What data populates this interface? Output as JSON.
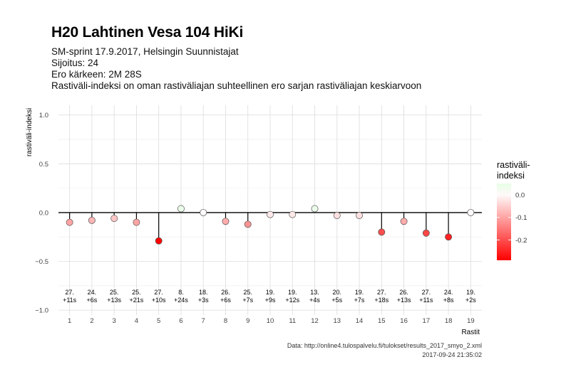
{
  "title": "H20 Lahtinen Vesa 104 HiKi",
  "subtitles": [
    "SM-sprint 17.9.2017, Helsingin Suunnistajat",
    "Sijoitus: 24",
    "Ero kärkeen: 2M 28S",
    "Rastiväli-indeksi on oman rastiväliajan suhteellinen ero sarjan rastiväliajan keskiarvoon"
  ],
  "caption": {
    "source": "Data: http://online4.tulospalvelu.fi/tulokset/results_2017_smyo_2.xml",
    "timestamp": "2017-09-24 21:35:02"
  },
  "legend": {
    "title": "rastiväli-\nindeksi",
    "ticks": [
      "0.0",
      "-0.1",
      "-0.2"
    ],
    "tick_values": [
      0.0,
      -0.1,
      -0.2
    ],
    "range": [
      -0.29,
      0.05
    ],
    "colors": {
      "low": "#ff0000",
      "mid": "#fffafa",
      "high": "#e6ffe6"
    }
  },
  "chart_data": {
    "type": "scatter",
    "style": "lollipop",
    "xlabel": "Rastit",
    "ylabel": "rastiväli-indeksi",
    "ylim": [
      -1.05,
      1.1
    ],
    "yticks": [
      1.0,
      0.5,
      0.0,
      -0.5,
      -1.0
    ],
    "ytick_labels": [
      "1.0",
      "0.5",
      "0.0",
      "−0.5",
      "−1.0"
    ],
    "grid": true,
    "legend_position": "right",
    "categories": [
      "1",
      "2",
      "3",
      "4",
      "5",
      "6",
      "7",
      "8",
      "9",
      "10",
      "11",
      "12",
      "13",
      "14",
      "15",
      "16",
      "17",
      "18",
      "19"
    ],
    "values": [
      -0.1,
      -0.08,
      -0.06,
      -0.1,
      -0.29,
      0.04,
      0.0,
      -0.09,
      -0.12,
      -0.02,
      -0.02,
      0.04,
      -0.03,
      -0.03,
      -0.2,
      -0.09,
      -0.21,
      -0.25,
      0.0
    ],
    "annotations": [
      [
        "27.",
        "+11s"
      ],
      [
        "24.",
        "+6s"
      ],
      [
        "25.",
        "+13s"
      ],
      [
        "25.",
        "+21s"
      ],
      [
        "27.",
        "+10s"
      ],
      [
        "8.",
        "+24s"
      ],
      [
        "18.",
        "+3s"
      ],
      [
        "26.",
        "+6s"
      ],
      [
        "25.",
        "+7s"
      ],
      [
        "19.",
        "+9s"
      ],
      [
        "19.",
        "+12s"
      ],
      [
        "13.",
        "+4s"
      ],
      [
        "20.",
        "+5s"
      ],
      [
        "19.",
        "+7s"
      ],
      [
        "27.",
        "+18s"
      ],
      [
        "26.",
        "+13s"
      ],
      [
        "27.",
        "+11s"
      ],
      [
        "24.",
        "+8s"
      ],
      [
        "19.",
        "+2s"
      ]
    ]
  }
}
